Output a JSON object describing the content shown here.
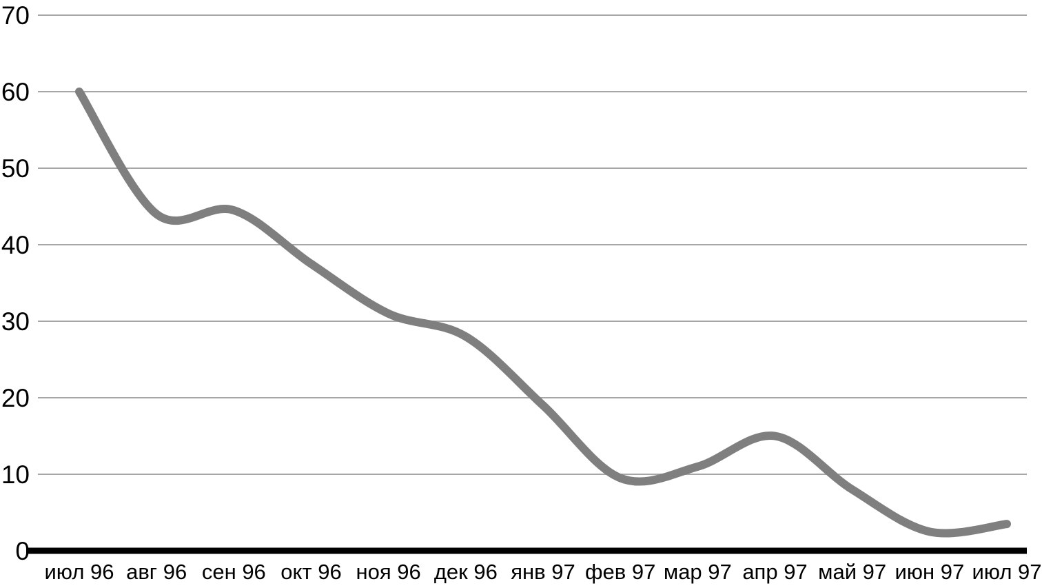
{
  "chart_data": {
    "type": "line",
    "title": "",
    "xlabel": "",
    "ylabel": "",
    "categories": [
      "июл 96",
      "авг 96",
      "сен 96",
      "окт 96",
      "ноя 96",
      "дек 96",
      "янв 97",
      "фев 97",
      "мар 97",
      "апр 97",
      "май 97",
      "июн 97",
      "июл 97"
    ],
    "series": [
      {
        "name": "series-1",
        "values": [
          60,
          44,
          44.5,
          37.5,
          31,
          28,
          19,
          9.5,
          11,
          15,
          8,
          2.5,
          3.5
        ]
      }
    ],
    "ylim": [
      0,
      70
    ],
    "y_ticks": [
      0,
      10,
      20,
      30,
      40,
      50,
      60,
      70
    ],
    "grid": "horizontal",
    "legend_position": "none",
    "smooth": true
  },
  "colors": {
    "line": "#7f7f7f",
    "gridline": "#a6a6a6",
    "axis": "#000000",
    "text": "#000000",
    "background": "#ffffff"
  }
}
